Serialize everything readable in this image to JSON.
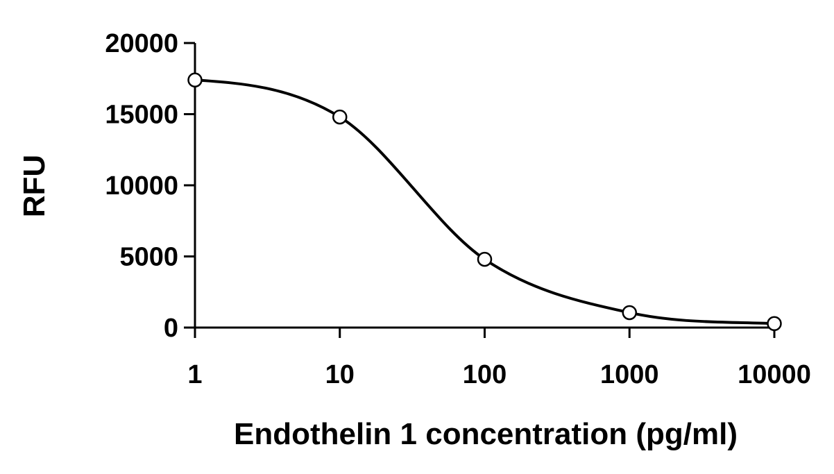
{
  "chart_data": {
    "type": "line",
    "title": "",
    "xlabel": "Endothelin 1 concentration (pg/ml)",
    "ylabel": "RFU",
    "x_scale": "log",
    "xlim": [
      1,
      10000
    ],
    "ylim": [
      0,
      20000
    ],
    "x_ticks": [
      1,
      10,
      100,
      1000,
      10000
    ],
    "x_tick_labels": [
      "1",
      "10",
      "100",
      "1000",
      "10000"
    ],
    "y_ticks": [
      0,
      5000,
      10000,
      15000,
      20000
    ],
    "y_tick_labels": [
      "0",
      "5000",
      "10000",
      "15000",
      "20000"
    ],
    "grid": false,
    "legend": "none",
    "series": [
      {
        "x": [
          1,
          10,
          100,
          1000,
          10000
        ],
        "y": [
          17400,
          14800,
          4800,
          1050,
          280
        ],
        "line_color": "#000000",
        "marker": "open-circle",
        "curve": "smooth-fit"
      }
    ]
  }
}
